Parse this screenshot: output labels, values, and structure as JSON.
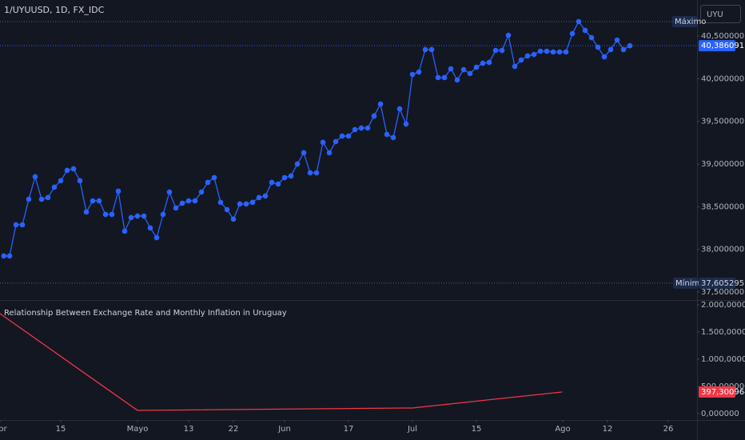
{
  "chart_data": [
    {
      "type": "line",
      "title": "1/UYUUSD, 1D, FX_IDC",
      "currency": "UYU",
      "color": "#2962ff",
      "x": [
        0.1,
        1,
        2,
        3,
        4,
        5,
        6,
        7,
        8,
        9,
        10,
        11,
        12,
        13,
        14,
        15,
        16,
        17,
        18,
        19,
        20,
        21,
        22,
        23,
        24,
        25,
        26,
        27,
        28,
        29,
        30,
        31,
        32,
        33,
        34,
        35,
        36,
        37,
        38,
        39,
        40,
        41,
        42,
        43,
        44,
        45,
        46,
        47,
        48,
        49,
        50,
        51,
        52,
        53,
        54,
        55,
        56,
        57,
        58,
        59,
        60,
        61,
        62,
        63,
        64,
        65,
        66,
        67,
        68,
        69,
        70,
        71,
        72,
        73,
        74,
        75,
        76,
        77,
        78,
        79,
        80,
        81,
        82,
        83,
        84,
        85,
        86,
        87,
        88,
        89,
        90,
        91,
        92,
        93,
        94,
        95,
        96,
        97,
        98
      ],
      "values": [
        37.923,
        37.923,
        38.288,
        38.288,
        38.588,
        38.851,
        38.588,
        38.607,
        38.729,
        38.804,
        38.926,
        38.944,
        38.804,
        38.438,
        38.569,
        38.569,
        38.41,
        38.41,
        38.682,
        38.213,
        38.373,
        38.391,
        38.391,
        38.251,
        38.138,
        38.41,
        38.672,
        38.485,
        38.541,
        38.569,
        38.569,
        38.672,
        38.785,
        38.841,
        38.551,
        38.466,
        38.354,
        38.532,
        38.532,
        38.551,
        38.607,
        38.626,
        38.785,
        38.766,
        38.841,
        38.86,
        39.0,
        39.132,
        38.897,
        38.897,
        39.254,
        39.132,
        39.263,
        39.328,
        39.328,
        39.403,
        39.422,
        39.422,
        39.563,
        39.703,
        39.347,
        39.31,
        39.647,
        39.469,
        40.05,
        40.078,
        40.341,
        40.341,
        40.013,
        40.013,
        40.116,
        39.985,
        40.106,
        40.06,
        40.134,
        40.181,
        40.191,
        40.331,
        40.331,
        40.509,
        40.144,
        40.219,
        40.266,
        40.284,
        40.322,
        40.322,
        40.313,
        40.313,
        40.313,
        40.528,
        40.669,
        40.566,
        40.481,
        40.369,
        40.256,
        40.341,
        40.453,
        40.341,
        40.386091
      ],
      "xlim": [
        -0.5,
        108.5
      ],
      "ylim": [
        37.407,
        40.922
      ],
      "yticks": [
        {
          "value": 40.5,
          "label": "40,500000"
        },
        {
          "value": 40,
          "label": "40,000000"
        },
        {
          "value": 39.5,
          "label": "39,500000"
        },
        {
          "value": 39,
          "label": "39,000000"
        },
        {
          "value": 38.5,
          "label": "38,500000"
        },
        {
          "value": 38,
          "label": "38,000000"
        },
        {
          "value": 37.5,
          "label": "37,500000"
        }
      ],
      "max_line": {
        "value": 40.669,
        "label": "Máximo"
      },
      "min_line": {
        "value": 37.605295,
        "label": "Mínimo",
        "value_label": "37,605295"
      },
      "last_value_label": "40,386091"
    },
    {
      "type": "line",
      "title": "Relationship Between Exchange Rate and Monthly Inflation in Uruguay",
      "color": "#f23645",
      "x": [
        -0.5,
        21,
        64,
        87.4
      ],
      "values": [
        1838,
        59,
        103,
        397.300964
      ],
      "last_value_label": "397,300964",
      "xlim": [
        -0.5,
        108.5
      ],
      "ylim": [
        -118,
        2088
      ],
      "yticks": [
        {
          "value": 2000,
          "label": "2.000,000000"
        },
        {
          "value": 1500,
          "label": "1.500,000000"
        },
        {
          "value": 1000,
          "label": "1.000,000000"
        },
        {
          "value": 500,
          "label": "500,000000"
        },
        {
          "value": 0,
          "label": "0,000000"
        }
      ],
      "xticks": [
        {
          "value": -0.5,
          "label": "Abr"
        },
        {
          "value": 9,
          "label": "15"
        },
        {
          "value": 21,
          "label": "Mayo"
        },
        {
          "value": 29,
          "label": "13"
        },
        {
          "value": 36,
          "label": "22"
        },
        {
          "value": 44,
          "label": "Jun"
        },
        {
          "value": 54,
          "label": "17"
        },
        {
          "value": 64,
          "label": "Jul"
        },
        {
          "value": 74,
          "label": "15"
        },
        {
          "value": 87.5,
          "label": "Ago"
        },
        {
          "value": 94.5,
          "label": "12"
        },
        {
          "value": 104,
          "label": "26"
        }
      ]
    }
  ]
}
